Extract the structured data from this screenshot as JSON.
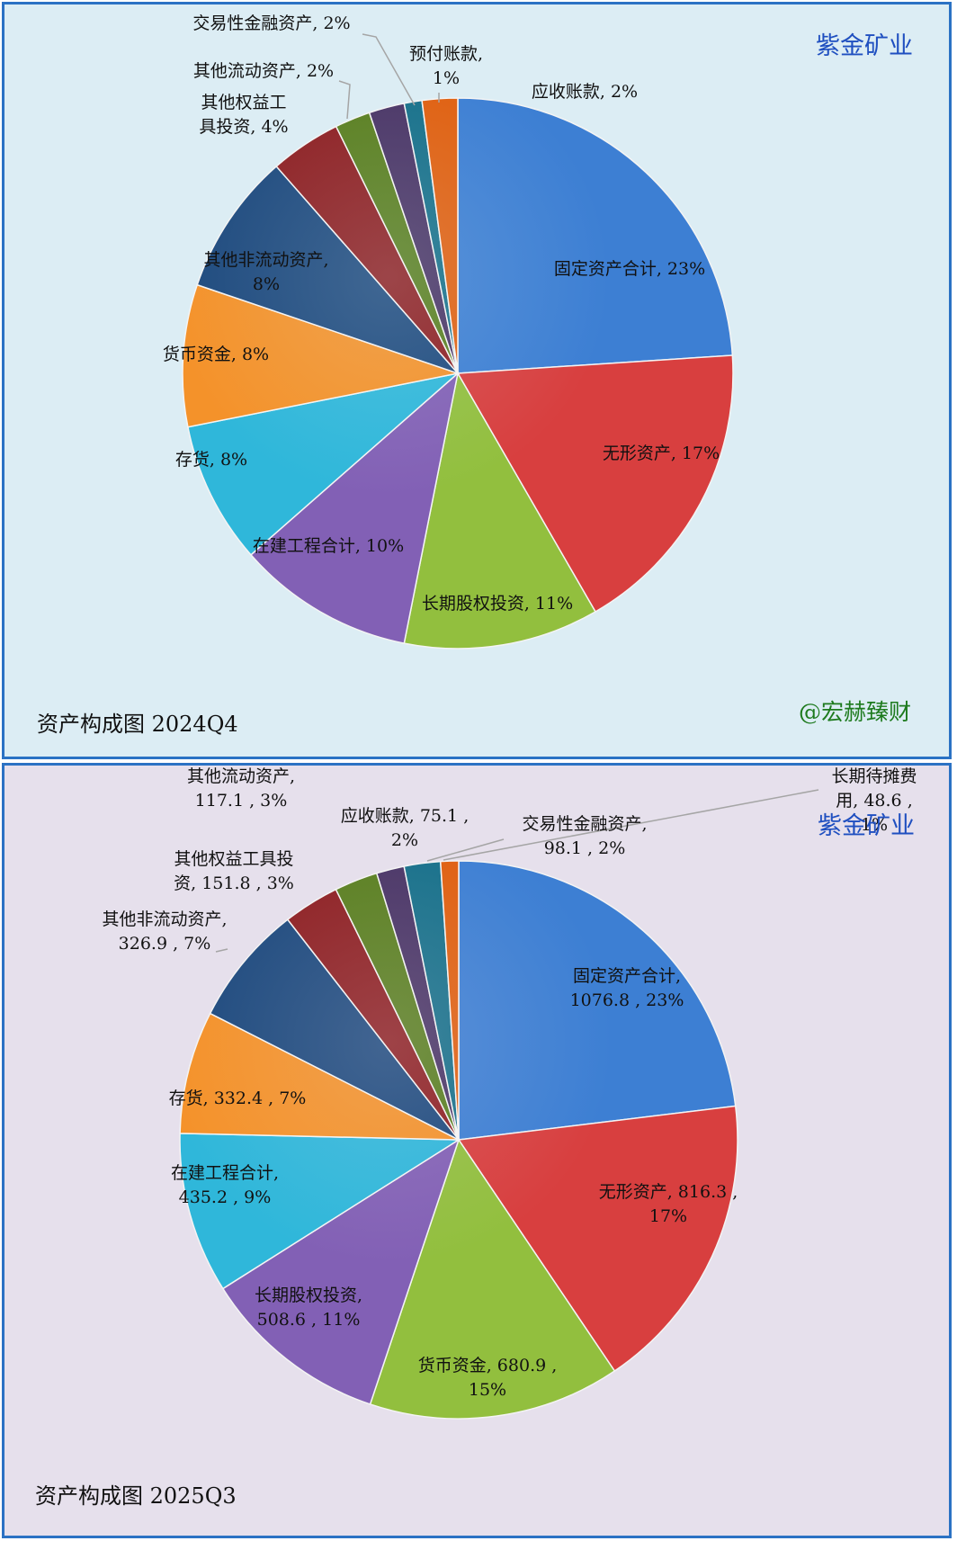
{
  "palette": [
    "#3d7fd3",
    "#d83f3f",
    "#92bf3e",
    "#8260b5",
    "#2fb7da",
    "#f4922a",
    "#1e4a7e",
    "#8e2023",
    "#5a7f20",
    "#4a3566",
    "#17708a",
    "#e06010"
  ],
  "chart_data": [
    {
      "type": "pie",
      "brand": "紫金矿业",
      "watermark": "@宏赫臻财",
      "caption": "资产构成图 2024Q4",
      "slices": [
        {
          "name": "固定资产合计",
          "pct": 23,
          "label": [
            "固定资产合计, 23%"
          ]
        },
        {
          "name": "无形资产",
          "pct": 17,
          "label": [
            "无形资产, 17%"
          ]
        },
        {
          "name": "长期股权投资",
          "pct": 11,
          "label": [
            "长期股权投资, 11%"
          ]
        },
        {
          "name": "在建工程合计",
          "pct": 10,
          "label": [
            "在建工程合计, 10%"
          ]
        },
        {
          "name": "存货",
          "pct": 8,
          "label": [
            "存货, 8%"
          ]
        },
        {
          "name": "货币资金",
          "pct": 8,
          "label": [
            "货币资金, 8%"
          ]
        },
        {
          "name": "其他非流动资产",
          "pct": 8,
          "label": [
            "其他非流动资产,",
            "8%"
          ]
        },
        {
          "name": "其他权益工具投资",
          "pct": 4,
          "label": [
            "其他权益工",
            "具投资, 4%"
          ]
        },
        {
          "name": "其他流动资产",
          "pct": 2,
          "label": [
            "其他流动资产, 2%"
          ]
        },
        {
          "name": "交易性金融资产",
          "pct": 2,
          "label": [
            "交易性金融资产, 2%"
          ]
        },
        {
          "name": "预付账款",
          "pct": 1,
          "label": [
            "预付账款,",
            "1%"
          ]
        },
        {
          "name": "应收账款",
          "pct": 2,
          "label": [
            "应收账款, 2%"
          ]
        }
      ]
    },
    {
      "type": "pie",
      "brand": "紫金矿业",
      "caption": "资产构成图 2025Q3",
      "slices": [
        {
          "name": "固定资产合计",
          "value": 1076.8,
          "pct": 23,
          "label": [
            "固定资产合计,",
            "1076.8 , 23%"
          ]
        },
        {
          "name": "无形资产",
          "value": 816.3,
          "pct": 17,
          "label": [
            "无形资产, 816.3 ,",
            "17%"
          ]
        },
        {
          "name": "货币资金",
          "value": 680.9,
          "pct": 15,
          "label": [
            "货币资金, 680.9 ,",
            "15%"
          ]
        },
        {
          "name": "长期股权投资",
          "value": 508.6,
          "pct": 11,
          "label": [
            "长期股权投资,",
            "508.6 , 11%"
          ]
        },
        {
          "name": "在建工程合计",
          "value": 435.2,
          "pct": 9,
          "label": [
            "在建工程合计,",
            "435.2 , 9%"
          ]
        },
        {
          "name": "存货",
          "value": 332.4,
          "pct": 7,
          "label": [
            "存货, 332.4 , 7%"
          ]
        },
        {
          "name": "其他非流动资产",
          "value": 326.9,
          "pct": 7,
          "label": [
            "其他非流动资产,",
            "326.9 , 7%"
          ]
        },
        {
          "name": "其他权益工具投资",
          "value": 151.8,
          "pct": 3,
          "label": [
            "其他权益工具投",
            "资, 151.8 , 3%"
          ]
        },
        {
          "name": "其他流动资产",
          "value": 117.1,
          "pct": 3,
          "label": [
            "其他流动资产,",
            "117.1 , 3%"
          ]
        },
        {
          "name": "应收账款",
          "value": 75.1,
          "pct": 2,
          "label": [
            "应收账款, 75.1 ,",
            "2%"
          ]
        },
        {
          "name": "交易性金融资产",
          "value": 98.1,
          "pct": 2,
          "label": [
            "交易性金融资产,",
            "98.1 , 2%"
          ]
        },
        {
          "name": "长期待摊费用",
          "value": 48.6,
          "pct": 1,
          "label": [
            "长期待摊费",
            "用, 48.6 ,",
            "1%"
          ]
        }
      ]
    }
  ]
}
